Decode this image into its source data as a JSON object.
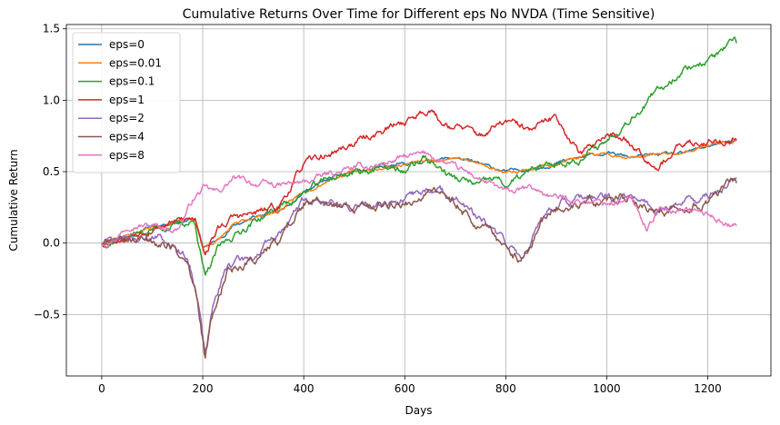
{
  "chart_data": {
    "type": "line",
    "title": "Cumulative Returns Over Time for Different eps No NVDA (Time Sensitive)",
    "xlabel": "Days",
    "ylabel": "Cumulative Return",
    "xlim": [
      -70,
      1325
    ],
    "ylim": [
      -0.93,
      1.53
    ],
    "xticks": [
      0,
      200,
      400,
      600,
      800,
      1000,
      1200
    ],
    "yticks": [
      -0.5,
      0.0,
      0.5,
      1.0,
      1.5
    ],
    "xtick_labels": [
      "0",
      "200",
      "400",
      "600",
      "800",
      "1000",
      "1200"
    ],
    "ytick_labels": [
      "−0.5",
      "0.0",
      "0.5",
      "1.0",
      "1.5"
    ],
    "grid": true,
    "legend_position": "top-left",
    "series": [
      {
        "name": "eps=0",
        "color": "#1f77b4",
        "noise": 0.015,
        "seed": 11,
        "x": [
          0,
          30,
          60,
          100,
          150,
          185,
          200,
          230,
          260,
          300,
          350,
          400,
          450,
          500,
          550,
          600,
          650,
          700,
          750,
          800,
          850,
          900,
          950,
          1000,
          1050,
          1100,
          1150,
          1200,
          1257
        ],
        "y": [
          0.0,
          0.04,
          0.06,
          0.12,
          0.15,
          0.17,
          -0.03,
          0.02,
          0.12,
          0.18,
          0.22,
          0.36,
          0.45,
          0.5,
          0.52,
          0.55,
          0.58,
          0.6,
          0.55,
          0.5,
          0.52,
          0.56,
          0.6,
          0.63,
          0.6,
          0.62,
          0.62,
          0.68,
          0.72
        ]
      },
      {
        "name": "eps=0.01",
        "color": "#ff7f0e",
        "noise": 0.015,
        "seed": 23,
        "x": [
          0,
          30,
          60,
          100,
          150,
          185,
          200,
          230,
          260,
          300,
          350,
          400,
          450,
          500,
          550,
          600,
          650,
          700,
          750,
          800,
          850,
          900,
          950,
          1000,
          1050,
          1100,
          1150,
          1200,
          1257
        ],
        "y": [
          0.0,
          0.04,
          0.06,
          0.12,
          0.15,
          0.17,
          -0.03,
          0.02,
          0.12,
          0.18,
          0.22,
          0.36,
          0.45,
          0.5,
          0.52,
          0.55,
          0.58,
          0.6,
          0.55,
          0.5,
          0.52,
          0.56,
          0.6,
          0.63,
          0.6,
          0.62,
          0.62,
          0.68,
          0.72
        ]
      },
      {
        "name": "eps=0.1",
        "color": "#2ca02c",
        "noise": 0.035,
        "seed": 37,
        "x": [
          0,
          30,
          60,
          100,
          150,
          185,
          205,
          230,
          260,
          300,
          350,
          400,
          450,
          500,
          550,
          600,
          640,
          660,
          700,
          750,
          780,
          800,
          850,
          900,
          950,
          1000,
          1050,
          1100,
          1150,
          1200,
          1257
        ],
        "y": [
          0.0,
          0.03,
          0.05,
          0.1,
          0.13,
          0.15,
          -0.25,
          -0.05,
          0.05,
          0.15,
          0.25,
          0.35,
          0.45,
          0.5,
          0.53,
          0.5,
          0.6,
          0.55,
          0.45,
          0.4,
          0.45,
          0.4,
          0.5,
          0.55,
          0.6,
          0.72,
          0.9,
          1.05,
          1.22,
          1.28,
          1.4
        ]
      },
      {
        "name": "eps=1",
        "color": "#d62728",
        "noise": 0.035,
        "seed": 53,
        "x": [
          0,
          30,
          60,
          100,
          150,
          185,
          205,
          230,
          260,
          300,
          350,
          400,
          450,
          500,
          550,
          600,
          650,
          670,
          700,
          750,
          800,
          850,
          900,
          950,
          1000,
          1050,
          1100,
          1150,
          1200,
          1257
        ],
        "y": [
          0.0,
          0.04,
          0.06,
          0.12,
          0.15,
          0.17,
          -0.05,
          0.1,
          0.18,
          0.2,
          0.25,
          0.55,
          0.62,
          0.7,
          0.78,
          0.85,
          0.95,
          0.85,
          0.82,
          0.75,
          0.85,
          0.78,
          0.88,
          0.62,
          0.78,
          0.7,
          0.55,
          0.68,
          0.72,
          0.72
        ]
      },
      {
        "name": "eps=2",
        "color": "#9467bd",
        "noise": 0.04,
        "seed": 71,
        "x": [
          0,
          30,
          60,
          100,
          140,
          170,
          190,
          205,
          220,
          250,
          300,
          350,
          400,
          450,
          500,
          550,
          600,
          650,
          700,
          750,
          800,
          830,
          850,
          870,
          900,
          950,
          1000,
          1050,
          1100,
          1150,
          1200,
          1257
        ],
        "y": [
          0.0,
          0.02,
          0.03,
          0.05,
          0.0,
          -0.1,
          -0.35,
          -0.78,
          -0.45,
          -0.15,
          -0.1,
          0.05,
          0.3,
          0.28,
          0.25,
          0.3,
          0.3,
          0.38,
          0.32,
          0.15,
          0.0,
          -0.1,
          0.0,
          0.18,
          0.28,
          0.3,
          0.3,
          0.32,
          0.22,
          0.3,
          0.32,
          0.46
        ]
      },
      {
        "name": "eps=4",
        "color": "#8c564b",
        "noise": 0.045,
        "seed": 89,
        "x": [
          0,
          30,
          60,
          100,
          140,
          170,
          190,
          205,
          220,
          250,
          300,
          350,
          400,
          450,
          500,
          550,
          600,
          650,
          700,
          750,
          800,
          830,
          850,
          870,
          900,
          950,
          1000,
          1050,
          1100,
          1150,
          1200,
          1257
        ],
        "y": [
          0.0,
          0.01,
          0.02,
          0.03,
          -0.03,
          -0.15,
          -0.4,
          -0.82,
          -0.5,
          -0.18,
          -0.12,
          0.02,
          0.28,
          0.26,
          0.23,
          0.28,
          0.28,
          0.36,
          0.3,
          0.12,
          -0.03,
          -0.12,
          -0.03,
          0.15,
          0.26,
          0.28,
          0.28,
          0.3,
          0.2,
          0.28,
          0.3,
          0.42
        ]
      },
      {
        "name": "eps=8",
        "color": "#e377c2",
        "noise": 0.03,
        "seed": 97,
        "x": [
          0,
          30,
          60,
          100,
          150,
          180,
          200,
          230,
          260,
          300,
          350,
          400,
          450,
          500,
          550,
          600,
          650,
          700,
          750,
          800,
          850,
          900,
          950,
          1000,
          1050,
          1080,
          1100,
          1150,
          1200,
          1257
        ],
        "y": [
          0.0,
          0.05,
          0.15,
          0.12,
          0.1,
          0.3,
          0.38,
          0.35,
          0.45,
          0.42,
          0.4,
          0.42,
          0.48,
          0.52,
          0.55,
          0.6,
          0.62,
          0.52,
          0.45,
          0.35,
          0.38,
          0.32,
          0.3,
          0.28,
          0.3,
          0.1,
          0.22,
          0.25,
          0.2,
          0.12
        ]
      }
    ]
  }
}
